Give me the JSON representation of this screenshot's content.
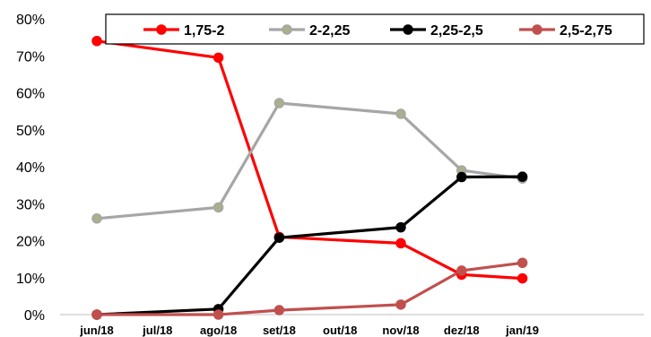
{
  "chart_data": {
    "type": "line",
    "title": "",
    "xlabel": "",
    "ylabel": "",
    "categories": [
      "jun/18",
      "jul/18",
      "ago/18",
      "set/18",
      "out/18",
      "nov/18",
      "dez/18",
      "jan/19"
    ],
    "ylim": [
      0,
      80
    ],
    "yticks": [
      0,
      10,
      20,
      30,
      40,
      50,
      60,
      70,
      80
    ],
    "ytick_labels": [
      "0%",
      "10%",
      "20%",
      "30%",
      "40%",
      "50%",
      "60%",
      "70%",
      "80%"
    ],
    "grid": false,
    "legend_position": "top-right",
    "series": [
      {
        "name": "1,75-2",
        "color": "#ff0000",
        "marker_fill": "#ff0000",
        "values": [
          74,
          null,
          69.5,
          21,
          null,
          19.3,
          10.8,
          9.8
        ]
      },
      {
        "name": "2-2,25",
        "color": "#a6a6a6",
        "marker_fill": "#a9b08c",
        "values": [
          26,
          null,
          29,
          57.2,
          null,
          54.3,
          39,
          36.8
        ]
      },
      {
        "name": "2,25-2,5",
        "color": "#000000",
        "marker_fill": "#000000",
        "values": [
          0,
          null,
          1.5,
          20.8,
          null,
          23.6,
          37.2,
          37.3
        ]
      },
      {
        "name": "2,5-2,75",
        "color": "#c0504d",
        "marker_fill": "#c0504d",
        "values": [
          0,
          null,
          0,
          1.2,
          null,
          2.7,
          11.9,
          14
        ]
      }
    ]
  }
}
